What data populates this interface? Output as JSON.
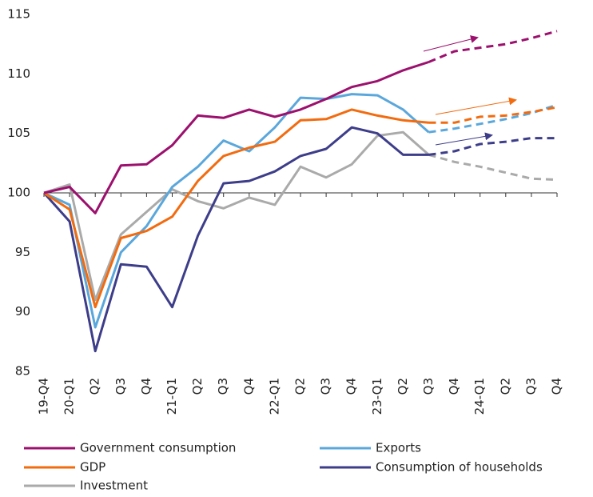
{
  "chart_data": {
    "type": "line",
    "categories": [
      "19-Q4",
      "20-Q1",
      "Q2",
      "Q3",
      "Q4",
      "21-Q1",
      "Q2",
      "Q3",
      "Q4",
      "22-Q1",
      "Q2",
      "Q3",
      "Q4",
      "23-Q1",
      "Q2",
      "Q3",
      "Q4",
      "24-Q1",
      "Q2",
      "Q3",
      "Q4"
    ],
    "ylim": [
      85,
      115
    ],
    "yticks": [
      85,
      90,
      95,
      100,
      105,
      110,
      115
    ],
    "xaxis_crosses": 100,
    "series": [
      {
        "name": "Government consumption",
        "color": "#9c106e",
        "values": [
          100,
          100.5,
          98.3,
          102.3,
          102.4,
          104,
          106.5,
          106.3,
          107,
          106.4,
          107,
          107.9,
          108.9,
          109.4,
          110.3,
          111,
          null,
          null,
          null,
          null,
          null
        ],
        "forecast": [
          null,
          null,
          null,
          null,
          null,
          null,
          null,
          null,
          null,
          null,
          null,
          null,
          null,
          null,
          null,
          111,
          111.9,
          112.2,
          112.5,
          113,
          113.6
        ]
      },
      {
        "name": "Exports",
        "color": "#5aa7dc",
        "values": [
          100,
          99,
          88.7,
          95,
          97.2,
          100.5,
          102.2,
          104.4,
          103.5,
          105.5,
          108,
          107.9,
          108.3,
          108.2,
          107,
          105.1,
          null,
          null,
          null,
          null,
          null
        ],
        "forecast": [
          null,
          null,
          null,
          null,
          null,
          null,
          null,
          null,
          null,
          null,
          null,
          null,
          null,
          null,
          null,
          105.1,
          105.4,
          105.8,
          106.2,
          106.7,
          107.4
        ]
      },
      {
        "name": "GDP",
        "color": "#f26b0f",
        "values": [
          100,
          98.6,
          90.4,
          96.2,
          96.8,
          98,
          101,
          103.1,
          103.8,
          104.3,
          106.1,
          106.2,
          107,
          106.5,
          106.1,
          105.9,
          null,
          null,
          null,
          null,
          null
        ],
        "forecast": [
          null,
          null,
          null,
          null,
          null,
          null,
          null,
          null,
          null,
          null,
          null,
          null,
          null,
          null,
          null,
          105.9,
          105.9,
          106.4,
          106.5,
          106.8,
          107.2
        ]
      },
      {
        "name": "Consumption of households",
        "color": "#3d3d8a",
        "values": [
          100,
          97.6,
          86.7,
          94,
          93.8,
          90.4,
          96.4,
          100.8,
          101,
          101.8,
          103.1,
          103.7,
          105.5,
          105,
          103.2,
          103.2,
          null,
          null,
          null,
          null,
          null
        ],
        "forecast": [
          null,
          null,
          null,
          null,
          null,
          null,
          null,
          null,
          null,
          null,
          null,
          null,
          null,
          null,
          null,
          103.2,
          103.5,
          104.1,
          104.3,
          104.6,
          104.6
        ]
      },
      {
        "name": "Investment",
        "color": "#aaaaaa",
        "values": [
          100,
          100.7,
          91,
          96.5,
          98.4,
          100.3,
          99.3,
          98.7,
          99.6,
          99,
          102.2,
          101.3,
          102.4,
          104.8,
          105.1,
          103.2,
          null,
          null,
          null,
          null,
          null
        ],
        "forecast": [
          null,
          null,
          null,
          null,
          null,
          null,
          null,
          null,
          null,
          null,
          null,
          null,
          null,
          null,
          null,
          103.2,
          102.6,
          102.2,
          101.7,
          101.2,
          101.1
        ]
      }
    ]
  }
}
